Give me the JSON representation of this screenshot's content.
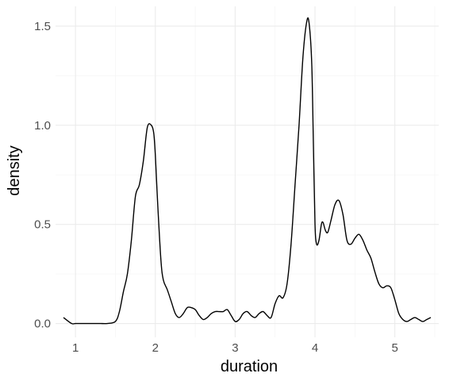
{
  "chart_data": {
    "type": "line",
    "title": "",
    "xlabel": "duration",
    "ylabel": "density",
    "xlim": [
      0.75,
      5.55
    ],
    "ylim": [
      -0.07,
      1.6
    ],
    "x_ticks": [
      1,
      2,
      3,
      4,
      5
    ],
    "x_tick_labels": [
      "1",
      "2",
      "3",
      "4",
      "5"
    ],
    "y_ticks": [
      0,
      0.5,
      1,
      1.5
    ],
    "y_tick_labels": [
      "0.0",
      "0.5",
      "1.0",
      "1.5"
    ],
    "grid": true,
    "legend": "none",
    "line_color": "#000000",
    "series": [
      {
        "x": [
          0.85,
          0.95,
          1.0,
          1.1,
          1.2,
          1.3,
          1.4,
          1.5,
          1.55,
          1.6,
          1.65,
          1.7,
          1.75,
          1.8,
          1.85,
          1.9,
          1.95,
          1.98,
          2.0,
          2.03,
          2.07,
          2.1,
          2.15,
          2.2,
          2.25,
          2.3,
          2.35,
          2.4,
          2.45,
          2.5,
          2.55,
          2.6,
          2.65,
          2.7,
          2.75,
          2.8,
          2.85,
          2.9,
          2.95,
          3.0,
          3.05,
          3.1,
          3.15,
          3.2,
          3.25,
          3.3,
          3.35,
          3.4,
          3.45,
          3.5,
          3.55,
          3.6,
          3.65,
          3.7,
          3.75,
          3.8,
          3.85,
          3.9,
          3.93,
          3.96,
          3.98,
          4.0,
          4.02,
          4.05,
          4.08,
          4.1,
          4.13,
          4.16,
          4.2,
          4.25,
          4.3,
          4.35,
          4.4,
          4.45,
          4.5,
          4.55,
          4.6,
          4.65,
          4.7,
          4.75,
          4.8,
          4.85,
          4.9,
          4.95,
          5.0,
          5.05,
          5.1,
          5.15,
          5.2,
          5.25,
          5.3,
          5.35,
          5.4,
          5.45
        ],
        "y": [
          0.03,
          0.0,
          0.0,
          0.0,
          0.0,
          0.0,
          0.0,
          0.01,
          0.06,
          0.16,
          0.25,
          0.42,
          0.64,
          0.7,
          0.82,
          0.99,
          1.0,
          0.96,
          0.85,
          0.6,
          0.32,
          0.22,
          0.17,
          0.11,
          0.05,
          0.03,
          0.05,
          0.08,
          0.08,
          0.07,
          0.04,
          0.02,
          0.03,
          0.05,
          0.06,
          0.06,
          0.06,
          0.07,
          0.04,
          0.01,
          0.02,
          0.05,
          0.06,
          0.04,
          0.03,
          0.05,
          0.06,
          0.04,
          0.03,
          0.1,
          0.14,
          0.13,
          0.2,
          0.4,
          0.7,
          1.0,
          1.35,
          1.53,
          1.5,
          1.3,
          0.9,
          0.5,
          0.4,
          0.42,
          0.5,
          0.51,
          0.47,
          0.46,
          0.52,
          0.6,
          0.62,
          0.55,
          0.42,
          0.4,
          0.43,
          0.45,
          0.42,
          0.37,
          0.33,
          0.26,
          0.2,
          0.18,
          0.19,
          0.18,
          0.12,
          0.05,
          0.02,
          0.01,
          0.02,
          0.03,
          0.02,
          0.01,
          0.02,
          0.03
        ]
      }
    ]
  }
}
